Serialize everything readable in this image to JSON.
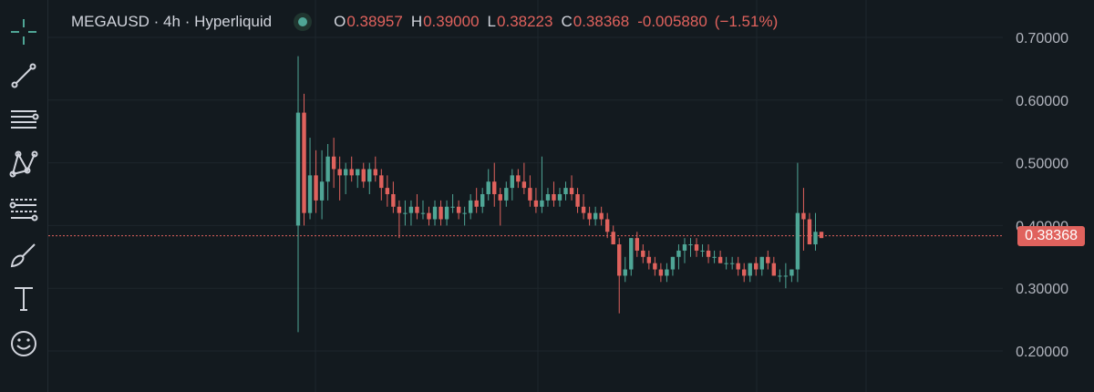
{
  "header": {
    "symbol_title": "MEGAUSD · 4h · Hyperliquid",
    "open_key": "O",
    "open_value": "0.38957",
    "high_key": "H",
    "high_value": "0.39000",
    "low_key": "L",
    "low_value": "0.38223",
    "close_key": "C",
    "close_value": "0.38368",
    "change": "-0.005880",
    "change_pct": "(−1.51%)"
  },
  "toolbar": {
    "tools": [
      "crosshair-icon",
      "trend-line-icon",
      "horizontal-lines-icon",
      "pattern-icon",
      "fib-lines-icon",
      "brush-icon",
      "text-icon",
      "emoji-icon"
    ]
  },
  "price_tag": "0.38368",
  "colors": {
    "up": "#4fa696",
    "down": "#e0625d",
    "background": "#131a1f",
    "grid": "#1e262c"
  },
  "chart_data": {
    "type": "candlestick",
    "y_ticks": [
      "0.70000",
      "0.60000",
      "0.50000",
      "0.40000",
      "0.30000",
      "0.20000"
    ],
    "ylim": [
      0.17,
      0.74
    ],
    "last_price": 0.38368,
    "candles": [
      [
        0.4,
        0.67,
        0.23,
        0.58
      ],
      [
        0.58,
        0.61,
        0.4,
        0.42
      ],
      [
        0.42,
        0.54,
        0.41,
        0.48
      ],
      [
        0.48,
        0.52,
        0.42,
        0.44
      ],
      [
        0.44,
        0.52,
        0.41,
        0.47
      ],
      [
        0.47,
        0.53,
        0.44,
        0.51
      ],
      [
        0.51,
        0.54,
        0.46,
        0.49
      ],
      [
        0.49,
        0.51,
        0.44,
        0.48
      ],
      [
        0.48,
        0.5,
        0.45,
        0.49
      ],
      [
        0.49,
        0.51,
        0.47,
        0.48
      ],
      [
        0.48,
        0.49,
        0.46,
        0.49
      ],
      [
        0.49,
        0.5,
        0.46,
        0.47
      ],
      [
        0.47,
        0.5,
        0.45,
        0.49
      ],
      [
        0.49,
        0.51,
        0.47,
        0.48
      ],
      [
        0.48,
        0.49,
        0.44,
        0.46
      ],
      [
        0.46,
        0.48,
        0.43,
        0.45
      ],
      [
        0.45,
        0.47,
        0.42,
        0.43
      ],
      [
        0.43,
        0.44,
        0.38,
        0.42
      ],
      [
        0.42,
        0.44,
        0.4,
        0.42
      ],
      [
        0.42,
        0.44,
        0.4,
        0.43
      ],
      [
        0.43,
        0.45,
        0.41,
        0.42
      ],
      [
        0.42,
        0.44,
        0.41,
        0.42
      ],
      [
        0.42,
        0.43,
        0.4,
        0.41
      ],
      [
        0.41,
        0.44,
        0.4,
        0.43
      ],
      [
        0.43,
        0.44,
        0.4,
        0.41
      ],
      [
        0.41,
        0.44,
        0.4,
        0.43
      ],
      [
        0.43,
        0.45,
        0.42,
        0.43
      ],
      [
        0.43,
        0.44,
        0.41,
        0.42
      ],
      [
        0.42,
        0.43,
        0.4,
        0.42
      ],
      [
        0.42,
        0.45,
        0.41,
        0.44
      ],
      [
        0.44,
        0.46,
        0.42,
        0.43
      ],
      [
        0.43,
        0.46,
        0.42,
        0.45
      ],
      [
        0.45,
        0.49,
        0.44,
        0.47
      ],
      [
        0.47,
        0.5,
        0.43,
        0.45
      ],
      [
        0.45,
        0.46,
        0.4,
        0.44
      ],
      [
        0.44,
        0.47,
        0.43,
        0.46
      ],
      [
        0.46,
        0.49,
        0.44,
        0.48
      ],
      [
        0.48,
        0.49,
        0.46,
        0.47
      ],
      [
        0.47,
        0.5,
        0.45,
        0.46
      ],
      [
        0.46,
        0.48,
        0.43,
        0.44
      ],
      [
        0.44,
        0.46,
        0.42,
        0.43
      ],
      [
        0.43,
        0.51,
        0.42,
        0.44
      ],
      [
        0.44,
        0.46,
        0.43,
        0.45
      ],
      [
        0.45,
        0.47,
        0.43,
        0.44
      ],
      [
        0.44,
        0.46,
        0.43,
        0.45
      ],
      [
        0.45,
        0.47,
        0.44,
        0.46
      ],
      [
        0.46,
        0.48,
        0.44,
        0.45
      ],
      [
        0.45,
        0.46,
        0.42,
        0.43
      ],
      [
        0.43,
        0.45,
        0.41,
        0.42
      ],
      [
        0.42,
        0.43,
        0.4,
        0.41
      ],
      [
        0.41,
        0.43,
        0.4,
        0.42
      ],
      [
        0.42,
        0.43,
        0.4,
        0.41
      ],
      [
        0.41,
        0.42,
        0.38,
        0.39
      ],
      [
        0.39,
        0.4,
        0.37,
        0.37
      ],
      [
        0.37,
        0.38,
        0.26,
        0.32
      ],
      [
        0.32,
        0.35,
        0.31,
        0.33
      ],
      [
        0.33,
        0.38,
        0.32,
        0.38
      ],
      [
        0.38,
        0.39,
        0.35,
        0.36
      ],
      [
        0.36,
        0.37,
        0.34,
        0.35
      ],
      [
        0.35,
        0.36,
        0.33,
        0.34
      ],
      [
        0.34,
        0.35,
        0.32,
        0.33
      ],
      [
        0.33,
        0.34,
        0.31,
        0.32
      ],
      [
        0.32,
        0.34,
        0.31,
        0.33
      ],
      [
        0.33,
        0.35,
        0.32,
        0.35
      ],
      [
        0.35,
        0.37,
        0.33,
        0.36
      ],
      [
        0.36,
        0.38,
        0.34,
        0.37
      ],
      [
        0.37,
        0.38,
        0.35,
        0.37
      ],
      [
        0.37,
        0.38,
        0.35,
        0.36
      ],
      [
        0.36,
        0.37,
        0.35,
        0.36
      ],
      [
        0.36,
        0.37,
        0.34,
        0.35
      ],
      [
        0.35,
        0.36,
        0.34,
        0.35
      ],
      [
        0.35,
        0.36,
        0.34,
        0.34
      ],
      [
        0.34,
        0.35,
        0.33,
        0.34
      ],
      [
        0.34,
        0.35,
        0.33,
        0.34
      ],
      [
        0.34,
        0.35,
        0.32,
        0.33
      ],
      [
        0.33,
        0.34,
        0.31,
        0.32
      ],
      [
        0.32,
        0.34,
        0.31,
        0.34
      ],
      [
        0.34,
        0.35,
        0.32,
        0.33
      ],
      [
        0.33,
        0.35,
        0.32,
        0.35
      ],
      [
        0.35,
        0.36,
        0.33,
        0.34
      ],
      [
        0.34,
        0.35,
        0.32,
        0.32
      ],
      [
        0.32,
        0.33,
        0.31,
        0.32
      ],
      [
        0.32,
        0.34,
        0.3,
        0.32
      ],
      [
        0.32,
        0.33,
        0.31,
        0.33
      ],
      [
        0.33,
        0.5,
        0.31,
        0.42
      ],
      [
        0.42,
        0.46,
        0.36,
        0.41
      ],
      [
        0.41,
        0.42,
        0.37,
        0.37
      ],
      [
        0.37,
        0.42,
        0.36,
        0.39
      ],
      [
        0.39,
        0.39,
        0.38,
        0.38
      ]
    ]
  }
}
